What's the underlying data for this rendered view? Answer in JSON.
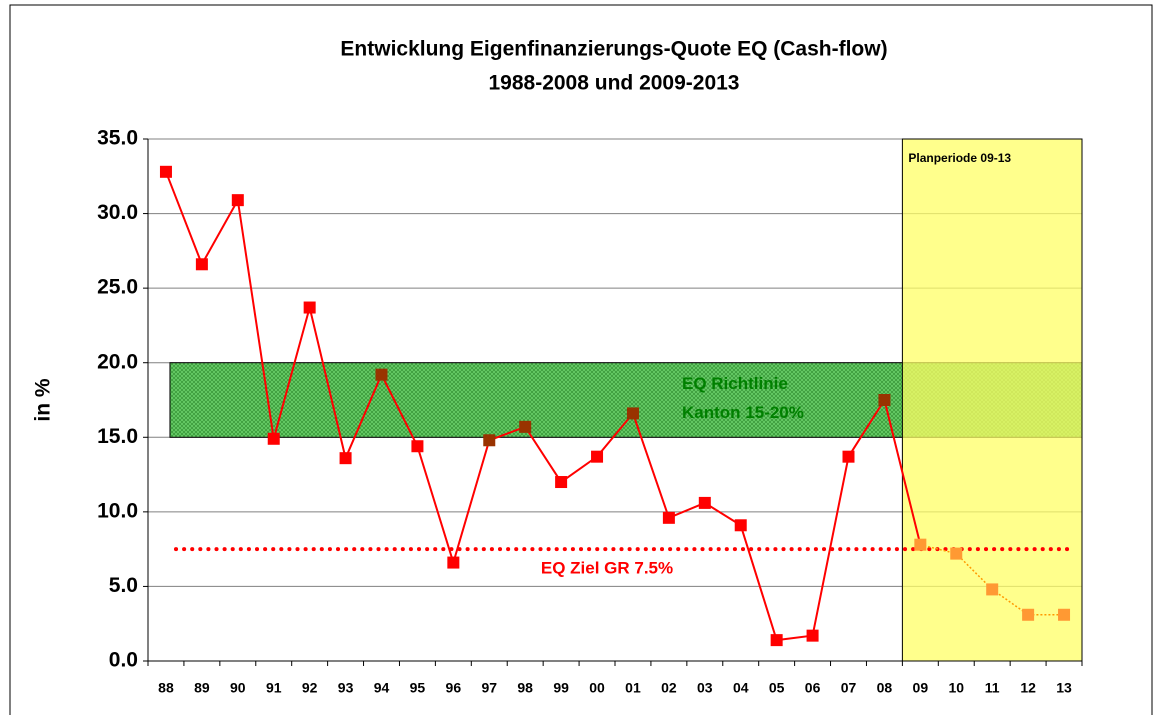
{
  "chart_data": {
    "type": "line",
    "title_lines": [
      "Entwicklung Eigenfinanzierungs-Quote EQ (Cash-flow)",
      "1988-2008 und 2009-2013"
    ],
    "y_label": "in %",
    "categories": [
      "88",
      "89",
      "90",
      "91",
      "92",
      "93",
      "94",
      "95",
      "96",
      "97",
      "98",
      "99",
      "00",
      "01",
      "02",
      "03",
      "04",
      "05",
      "06",
      "07",
      "08",
      "09",
      "10",
      "11",
      "12",
      "13"
    ],
    "values": [
      32.8,
      26.6,
      30.9,
      14.9,
      23.7,
      13.6,
      19.2,
      14.4,
      6.6,
      14.8,
      15.7,
      12.0,
      13.7,
      16.6,
      9.6,
      10.6,
      9.1,
      1.4,
      1.7,
      13.7,
      17.5,
      7.8,
      7.2,
      4.8,
      3.1,
      3.1
    ],
    "color": "#ff0000",
    "plan_color": "#ff9900",
    "marker_colors": [
      "#ff0000",
      "#ff0000",
      "#ff0000",
      "#ff0000",
      "#ff0000",
      "#ff0000",
      "#993300",
      "#ff0000",
      "#ff0000",
      "#993300",
      "#993300",
      "#ff0000",
      "#ff0000",
      "#993300",
      "#ff0000",
      "#ff0000",
      "#ff0000",
      "#ff0000",
      "#ff0000",
      "#ff0000",
      "#993300",
      "#ff9933",
      "#ff9933",
      "#ff9933",
      "#ff9933",
      "#ff9933"
    ],
    "ylim": [
      0,
      35
    ],
    "yticks": [
      {
        "value": 0,
        "label": "0.0"
      },
      {
        "value": 5,
        "label": "5.0"
      },
      {
        "value": 10,
        "label": "10.0"
      },
      {
        "value": 15,
        "label": "15.0"
      },
      {
        "value": 20,
        "label": "20.0"
      },
      {
        "value": 25,
        "label": "25.0"
      },
      {
        "value": 30,
        "label": "30.0"
      },
      {
        "value": 35,
        "label": "35.0"
      }
    ],
    "grid": true,
    "guideline_band": {
      "label_lines": [
        "EQ Richtlinie",
        "Kanton 15-20%"
      ],
      "from": 15,
      "to": 20,
      "color": "#33aa33",
      "label_color": "#008000"
    },
    "target_line": {
      "label": "EQ Ziel GR 7.5%",
      "value": 7.5,
      "color": "#ff0000"
    },
    "plan_period": {
      "label": "Planperiode 09-13",
      "start": "09",
      "color": "#ffff66"
    }
  }
}
